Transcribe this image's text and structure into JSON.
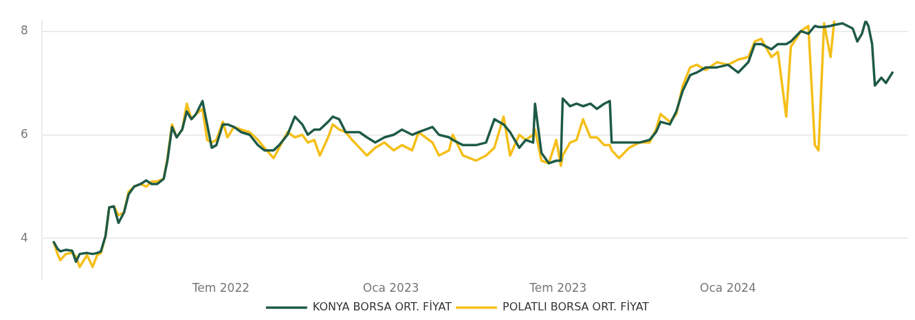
{
  "chart_data": {
    "type": "line",
    "x": [
      "2022-01-01",
      "2022-01-05",
      "2022-01-08",
      "2022-01-14",
      "2022-01-21",
      "2022-01-25",
      "2022-01-29",
      "2022-02-06",
      "2022-02-12",
      "2022-02-17",
      "2022-02-21",
      "2022-02-26",
      "2022-03-02",
      "2022-03-07",
      "2022-03-12",
      "2022-03-18",
      "2022-03-23",
      "2022-03-29",
      "2022-04-05",
      "2022-04-11",
      "2022-04-17",
      "2022-04-23",
      "2022-04-30",
      "2022-05-04",
      "2022-05-09",
      "2022-05-14",
      "2022-05-20",
      "2022-05-25",
      "2022-05-30",
      "2022-06-04",
      "2022-06-11",
      "2022-06-16",
      "2022-06-21",
      "2022-06-26",
      "2022-07-03",
      "2022-07-08",
      "2022-07-15",
      "2022-07-23",
      "2022-08-01",
      "2022-08-10",
      "2022-08-17",
      "2022-08-27",
      "2022-09-02",
      "2022-09-11",
      "2022-09-19",
      "2022-09-27",
      "2022-10-03",
      "2022-10-10",
      "2022-10-16",
      "2022-10-25",
      "2022-10-30",
      "2022-11-06",
      "2022-11-13",
      "2022-11-20",
      "2022-11-28",
      "2022-12-06",
      "2022-12-15",
      "2022-12-25",
      "2023-01-04",
      "2023-01-13",
      "2023-01-24",
      "2023-01-31",
      "2023-02-15",
      "2023-02-22",
      "2023-03-05",
      "2023-03-09",
      "2023-03-20",
      "2023-04-03",
      "2023-04-14",
      "2023-04-23",
      "2023-05-03",
      "2023-05-10",
      "2023-05-20",
      "2023-05-27",
      "2023-06-04",
      "2023-06-06",
      "2023-06-13",
      "2023-06-21",
      "2023-06-29",
      "2023-07-04",
      "2023-07-06",
      "2023-07-14",
      "2023-07-21",
      "2023-07-28",
      "2023-08-05",
      "2023-08-12",
      "2023-08-20",
      "2023-08-26",
      "2023-08-28",
      "2023-09-05",
      "2023-09-16",
      "2023-09-27",
      "2023-10-08",
      "2023-10-15",
      "2023-10-20",
      "2023-10-30",
      "2023-11-06",
      "2023-11-13",
      "2023-11-21",
      "2023-11-28",
      "2023-12-08",
      "2023-12-20",
      "2024-01-01",
      "2024-01-12",
      "2024-01-23",
      "2024-01-30",
      "2024-02-06",
      "2024-02-17",
      "2024-02-24",
      "2024-03-04",
      "2024-03-09",
      "2024-03-20",
      "2024-03-28",
      "2024-04-04",
      "2024-04-08",
      "2024-04-14",
      "2024-04-21",
      "2024-04-25",
      "2024-05-04",
      "2024-05-15",
      "2024-05-20",
      "2024-05-25",
      "2024-05-29",
      "2024-06-01",
      "2024-06-05",
      "2024-06-08",
      "2024-06-15",
      "2024-06-20",
      "2024-06-27"
    ],
    "series": [
      {
        "name": "KONYA BORSA ORT. FİYAT",
        "color": "#1e5a48",
        "values": [
          3.93,
          3.8,
          3.75,
          3.78,
          3.76,
          3.55,
          3.7,
          3.72,
          3.7,
          3.72,
          3.75,
          4.05,
          4.6,
          4.62,
          4.3,
          4.5,
          4.85,
          5.0,
          5.05,
          5.12,
          5.05,
          5.05,
          5.15,
          5.5,
          6.15,
          5.95,
          6.1,
          6.45,
          6.3,
          6.4,
          6.65,
          6.2,
          5.75,
          5.8,
          6.2,
          6.2,
          6.15,
          6.05,
          6.0,
          5.8,
          5.7,
          5.7,
          5.8,
          6.0,
          6.35,
          6.2,
          6.0,
          6.1,
          6.1,
          6.25,
          6.35,
          6.3,
          6.05,
          6.05,
          6.05,
          5.95,
          5.85,
          5.95,
          6.0,
          6.1,
          6.0,
          6.05,
          6.15,
          6.0,
          5.95,
          5.9,
          5.8,
          5.8,
          5.85,
          6.3,
          6.2,
          6.05,
          5.75,
          5.9,
          5.85,
          6.6,
          5.65,
          5.45,
          5.5,
          5.5,
          6.7,
          6.55,
          6.6,
          6.55,
          6.6,
          6.5,
          6.6,
          6.65,
          5.85,
          5.85,
          5.85,
          5.85,
          5.9,
          6.05,
          6.25,
          6.2,
          6.45,
          6.85,
          7.15,
          7.2,
          7.3,
          7.3,
          7.35,
          7.2,
          7.4,
          7.75,
          7.75,
          7.65,
          7.75,
          7.75,
          7.8,
          8.0,
          7.95,
          8.1,
          8.08,
          8.08,
          8.1,
          8.12,
          8.15,
          8.05,
          7.8,
          7.95,
          8.2,
          8.1,
          7.75,
          6.95,
          7.1,
          7.0,
          7.2
        ]
      },
      {
        "name": "POLATLI BORSA ORT. FİYAT",
        "color": "#f5bf18",
        "values": [
          3.92,
          3.7,
          3.58,
          3.7,
          3.72,
          3.65,
          3.45,
          3.68,
          3.45,
          3.68,
          3.72,
          4.05,
          4.6,
          4.62,
          4.45,
          4.5,
          4.9,
          5.0,
          5.05,
          5.0,
          5.1,
          5.1,
          5.15,
          5.55,
          6.2,
          5.95,
          6.1,
          6.6,
          6.3,
          6.4,
          6.5,
          5.9,
          5.85,
          5.9,
          6.25,
          5.95,
          6.15,
          6.1,
          6.05,
          5.9,
          5.75,
          5.55,
          5.75,
          6.05,
          5.95,
          6.0,
          5.85,
          5.9,
          5.6,
          5.95,
          6.2,
          6.1,
          6.05,
          5.9,
          5.75,
          5.6,
          5.75,
          5.85,
          5.7,
          5.8,
          5.7,
          6.05,
          5.85,
          5.6,
          5.7,
          6.0,
          5.6,
          5.5,
          5.6,
          5.75,
          6.35,
          5.6,
          6.0,
          5.9,
          6.0,
          6.1,
          5.5,
          5.45,
          5.9,
          5.4,
          5.6,
          5.85,
          5.9,
          6.3,
          5.95,
          5.95,
          5.8,
          5.8,
          5.7,
          5.55,
          5.75,
          5.85,
          5.85,
          6.1,
          6.4,
          6.25,
          6.4,
          6.95,
          7.3,
          7.35,
          7.25,
          7.4,
          7.35,
          7.45,
          7.5,
          7.8,
          7.85,
          7.5,
          7.6,
          6.35,
          7.7,
          8.0,
          8.1,
          5.8,
          5.7,
          8.15,
          7.5,
          8.2,
          null,
          null,
          null,
          null,
          null,
          null,
          null,
          null,
          null,
          null,
          null
        ]
      }
    ],
    "xlim": [
      "2021-12-19",
      "2024-07-14"
    ],
    "xticks": [
      {
        "value": "2022-07-01",
        "label": "Tem 2022"
      },
      {
        "value": "2023-01-01",
        "label": "Oca 2023"
      },
      {
        "value": "2023-07-01",
        "label": "Tem 2023"
      },
      {
        "value": "2024-01-01",
        "label": "Oca 2024"
      }
    ],
    "ylim": [
      3.2,
      8.2
    ],
    "yticks": [
      4,
      6,
      8
    ],
    "grid": "y",
    "legend": "bottom",
    "line_style": "solid",
    "marker": "none"
  }
}
